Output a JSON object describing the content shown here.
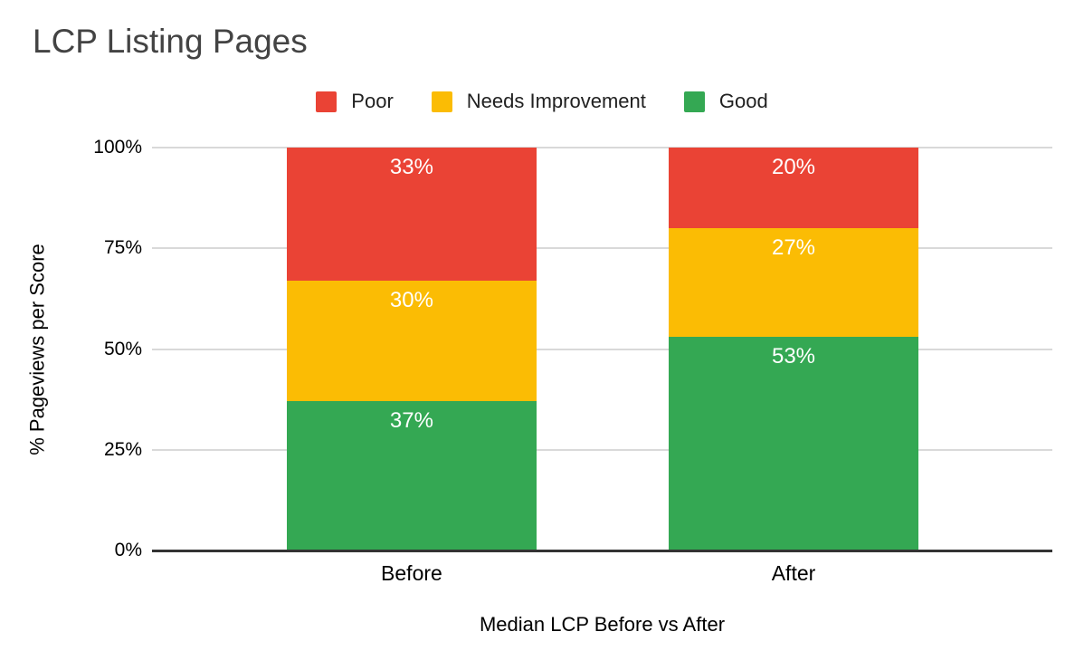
{
  "chart_data": {
    "type": "bar",
    "stacked": true,
    "title": "LCP Listing Pages",
    "categories": [
      "Before",
      "After"
    ],
    "series": [
      {
        "name": "Poor",
        "color": "#EA4335",
        "values": [
          33,
          20
        ]
      },
      {
        "name": "Needs Improvement",
        "color": "#FBBC04",
        "values": [
          30,
          27
        ]
      },
      {
        "name": "Good",
        "color": "#34A853",
        "values": [
          37,
          53
        ]
      }
    ],
    "value_suffix": "%",
    "xlabel": "Median LCP Before vs After",
    "ylabel": "% Pageviews per Score",
    "y_ticks": [
      "0%",
      "25%",
      "50%",
      "75%",
      "100%"
    ],
    "ylim": [
      0,
      100
    ],
    "legend_position": "top",
    "grid": true,
    "colors": {
      "background": "#ffffff",
      "title_text": "#434343",
      "legend_text": "#212121",
      "axis_text": "#000000",
      "bar_label_text": "#ffffff",
      "gridline": "#d9d9d9",
      "axis_line": "#333333"
    }
  }
}
